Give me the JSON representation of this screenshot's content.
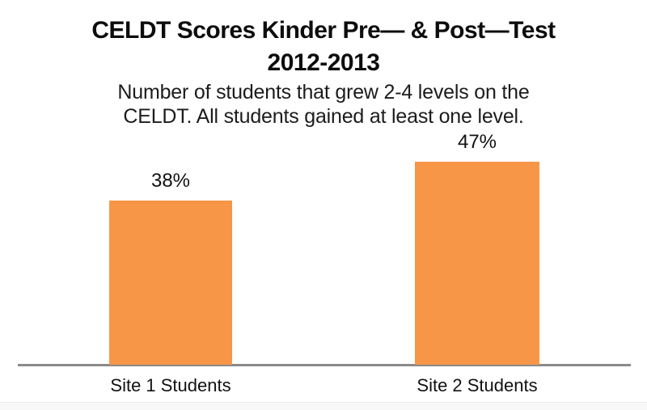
{
  "header": {
    "title_line1": "CELDT Scores Kinder Pre— & Post—Test",
    "title_line2": "2012-2013",
    "subtitle_line1": "Number of students that grew 2-4 levels on the",
    "subtitle_line2": "CELDT. All students gained at least one level."
  },
  "chart_data": {
    "type": "bar",
    "title": "CELDT Scores Kinder Pre— & Post—Test 2012-2013",
    "subtitle": "Number of students that grew 2-4 levels on the CELDT. All students gained at least one level.",
    "categories": [
      "Site 1 Students",
      "Site 2 Students"
    ],
    "values": [
      38,
      47
    ],
    "value_labels": [
      "38%",
      "47%"
    ],
    "unit": "percent",
    "series_name": "Students that grew 2-4 CELDT levels",
    "bar_color": "#F79646",
    "axis_line_color": "#8A8A8A",
    "text_color": "#111111",
    "background_color": "#FFFFFF",
    "gridlines": false,
    "legend": false,
    "y_axis_visible": false,
    "data_labels_position": "above-bar"
  }
}
